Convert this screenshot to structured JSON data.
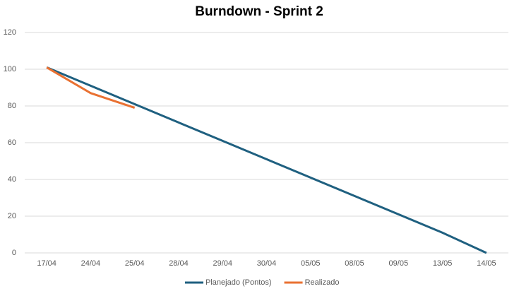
{
  "chart_data": {
    "type": "line",
    "title": "Burndown - Sprint 2",
    "categories": [
      "17/04",
      "24/04",
      "25/04",
      "28/04",
      "29/04",
      "30/04",
      "05/05",
      "08/05",
      "09/05",
      "13/05",
      "14/05"
    ],
    "series": [
      {
        "name": "Planejado (Pontos)",
        "color": "#1f6080",
        "values": [
          101,
          91,
          81,
          71,
          61,
          51,
          41,
          31,
          21,
          11,
          0
        ]
      },
      {
        "name": "Realizado",
        "color": "#e97132",
        "values": [
          101,
          87,
          79,
          null,
          null,
          null,
          null,
          null,
          null,
          null,
          null
        ]
      }
    ],
    "ylim": [
      0,
      120
    ],
    "yticks": [
      0,
      20,
      40,
      60,
      80,
      100,
      120
    ],
    "grid": true,
    "legend": "bottom"
  }
}
